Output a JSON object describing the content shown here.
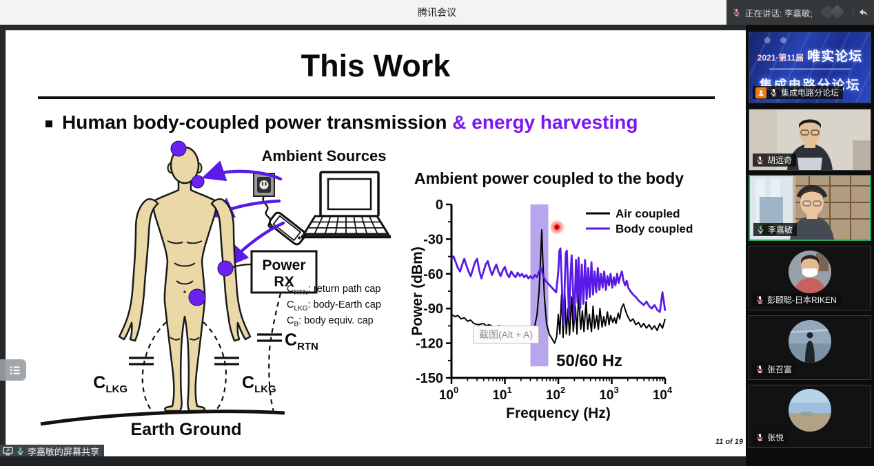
{
  "title_bar": {
    "app_title": "腾讯会议",
    "speaking_label": "正在讲话: 李嘉敏;"
  },
  "share_label": {
    "text": "李嘉敏的屏幕共享"
  },
  "sidebar": {
    "participants": [
      {
        "name": "集成电路分论坛",
        "muted": true,
        "type": "banner",
        "banner_line1": "2021·第11届",
        "banner_line2": "唯实论坛",
        "banner_line3": "集成电路分论坛"
      },
      {
        "name": "胡远奇",
        "muted": true,
        "type": "video"
      },
      {
        "name": "李嘉敏",
        "muted": false,
        "speaking": true,
        "type": "video"
      },
      {
        "name": "彭颐聪-日本RIKEN",
        "muted": true,
        "type": "avatar"
      },
      {
        "name": "张召富",
        "muted": true,
        "type": "avatar"
      },
      {
        "name": "张悦",
        "muted": true,
        "type": "avatar"
      }
    ]
  },
  "slide": {
    "title": "This Work",
    "bullet": {
      "black": "Human body-coupled power transmission ",
      "purple": "& energy harvesting"
    },
    "page_number": "11 of 19",
    "diagram": {
      "ambient_sources": "Ambient Sources",
      "power_rx_line1": "Power",
      "power_rx_line2": "RX",
      "earth_ground": "Earth Ground",
      "cap_labels": {
        "lkg_left": {
          "main": "C",
          "sub": "LKG"
        },
        "lkg_right": {
          "main": "C",
          "sub": "LKG"
        },
        "rtn": {
          "main": "C",
          "sub": "RTN"
        }
      },
      "cap_legend": [
        {
          "main": "C",
          "sub": "RTN",
          "desc": ": return path cap"
        },
        {
          "main": "C",
          "sub": "LKG",
          "desc": ": body-Earth cap"
        },
        {
          "main": "C",
          "sub": "B",
          "desc": ": body equiv. cap"
        }
      ]
    }
  },
  "overlays": {
    "screenshot_tooltip": "截图(Alt + A)"
  },
  "colors": {
    "accent_purple": "#7a16f0",
    "curve_purple": "#5a1ae6",
    "band_purple": "#a88fe6",
    "active_green": "#1fa85e",
    "muted_red": "#e23b3b"
  },
  "chart_data": {
    "type": "line",
    "title": "Ambient power coupled to the body",
    "xlabel": "Frequency (Hz)",
    "ylabel": "Power (dBm)",
    "x_scale": "log",
    "xlim_log10": [
      0,
      4
    ],
    "ylim": [
      -150,
      0
    ],
    "yticks": [
      0,
      -30,
      -60,
      -90,
      -120,
      -150
    ],
    "xtick_exponents": [
      0,
      1,
      2,
      3,
      4
    ],
    "annotation": "50/60 Hz",
    "highlight_band_hz": [
      30,
      65
    ],
    "legend_position": "top-right",
    "series": [
      {
        "name": "Air coupled",
        "color": "#000000",
        "width": 2,
        "points_log10hz_dbm": [
          [
            0,
            -95
          ],
          [
            0.06,
            -97
          ],
          [
            0.12,
            -96
          ],
          [
            0.18,
            -99
          ],
          [
            0.24,
            -98
          ],
          [
            0.3,
            -101
          ],
          [
            0.36,
            -100
          ],
          [
            0.42,
            -103
          ],
          [
            0.5,
            -104
          ],
          [
            0.6,
            -103
          ],
          [
            0.65,
            -105
          ],
          [
            0.7,
            -104
          ],
          [
            0.8,
            -106
          ],
          [
            0.9,
            -105
          ],
          [
            1.0,
            -107
          ],
          [
            1.1,
            -106
          ],
          [
            1.2,
            -108
          ],
          [
            1.3,
            -107
          ],
          [
            1.35,
            -109
          ],
          [
            1.45,
            -108
          ],
          [
            1.5,
            -110
          ],
          [
            1.55,
            -107
          ],
          [
            1.6,
            -96
          ],
          [
            1.64,
            -75
          ],
          [
            1.67,
            -45
          ],
          [
            1.69,
            -22
          ],
          [
            1.71,
            -48
          ],
          [
            1.74,
            -80
          ],
          [
            1.78,
            -103
          ],
          [
            1.83,
            -112
          ],
          [
            1.88,
            -116
          ],
          [
            1.93,
            -120
          ],
          [
            1.97,
            -114
          ],
          [
            2.0,
            -95
          ],
          [
            2.03,
            -112
          ],
          [
            2.06,
            -78
          ],
          [
            2.09,
            -115
          ],
          [
            2.12,
            -74
          ],
          [
            2.15,
            -112
          ],
          [
            2.18,
            -90
          ],
          [
            2.21,
            -113
          ],
          [
            2.25,
            -80
          ],
          [
            2.28,
            -110
          ],
          [
            2.32,
            -88
          ],
          [
            2.35,
            -112
          ],
          [
            2.38,
            -78
          ],
          [
            2.42,
            -108
          ],
          [
            2.45,
            -92
          ],
          [
            2.48,
            -110
          ],
          [
            2.52,
            -84
          ],
          [
            2.55,
            -108
          ],
          [
            2.58,
            -95
          ],
          [
            2.62,
            -110
          ],
          [
            2.65,
            -88
          ],
          [
            2.68,
            -107
          ],
          [
            2.72,
            -96
          ],
          [
            2.75,
            -108
          ],
          [
            2.78,
            -90
          ],
          [
            2.82,
            -106
          ],
          [
            2.85,
            -97
          ],
          [
            2.88,
            -105
          ],
          [
            2.92,
            -93
          ],
          [
            2.95,
            -104
          ],
          [
            2.98,
            -96
          ],
          [
            3.02,
            -102
          ],
          [
            3.05,
            -98
          ],
          [
            3.08,
            -103
          ],
          [
            3.12,
            -94
          ],
          [
            3.15,
            -99
          ],
          [
            3.18,
            -90
          ],
          [
            3.22,
            -86
          ],
          [
            3.26,
            -92
          ],
          [
            3.3,
            -97
          ],
          [
            3.35,
            -101
          ],
          [
            3.4,
            -99
          ],
          [
            3.45,
            -104
          ],
          [
            3.5,
            -102
          ],
          [
            3.55,
            -106
          ],
          [
            3.6,
            -103
          ],
          [
            3.65,
            -107
          ],
          [
            3.7,
            -104
          ],
          [
            3.75,
            -108
          ],
          [
            3.8,
            -105
          ],
          [
            3.85,
            -109
          ],
          [
            3.9,
            -103
          ],
          [
            3.95,
            -107
          ],
          [
            4.0,
            -99
          ]
        ]
      },
      {
        "name": "Body coupled",
        "color": "#5a1ae6",
        "width": 2.8,
        "points_log10hz_dbm": [
          [
            0,
            -48
          ],
          [
            0.04,
            -45
          ],
          [
            0.08,
            -50
          ],
          [
            0.12,
            -55
          ],
          [
            0.16,
            -58
          ],
          [
            0.2,
            -52
          ],
          [
            0.24,
            -47
          ],
          [
            0.28,
            -53
          ],
          [
            0.32,
            -58
          ],
          [
            0.36,
            -62
          ],
          [
            0.4,
            -56
          ],
          [
            0.44,
            -50
          ],
          [
            0.48,
            -47
          ],
          [
            0.52,
            -57
          ],
          [
            0.56,
            -64
          ],
          [
            0.6,
            -58
          ],
          [
            0.64,
            -52
          ],
          [
            0.68,
            -49
          ],
          [
            0.72,
            -56
          ],
          [
            0.76,
            -61
          ],
          [
            0.8,
            -56
          ],
          [
            0.84,
            -52
          ],
          [
            0.88,
            -58
          ],
          [
            0.92,
            -62
          ],
          [
            0.96,
            -57
          ],
          [
            1.0,
            -54
          ],
          [
            1.04,
            -60
          ],
          [
            1.08,
            -63
          ],
          [
            1.12,
            -58
          ],
          [
            1.16,
            -61
          ],
          [
            1.2,
            -63
          ],
          [
            1.24,
            -59
          ],
          [
            1.28,
            -62
          ],
          [
            1.32,
            -60
          ],
          [
            1.36,
            -63
          ],
          [
            1.4,
            -61
          ],
          [
            1.44,
            -64
          ],
          [
            1.48,
            -62
          ],
          [
            1.52,
            -64
          ],
          [
            1.56,
            -61
          ],
          [
            1.6,
            -63
          ],
          [
            1.64,
            -58
          ],
          [
            1.67,
            -55
          ],
          [
            1.69,
            -57
          ],
          [
            1.72,
            -62
          ],
          [
            1.76,
            -66
          ],
          [
            1.8,
            -68
          ],
          [
            1.84,
            -70
          ],
          [
            1.88,
            -72
          ],
          [
            1.92,
            -74
          ],
          [
            1.96,
            -76
          ],
          [
            2.0,
            -58
          ],
          [
            2.02,
            -40
          ],
          [
            2.04,
            -38
          ],
          [
            2.06,
            -62
          ],
          [
            2.08,
            -88
          ],
          [
            2.1,
            -104
          ],
          [
            2.12,
            -70
          ],
          [
            2.14,
            -42
          ],
          [
            2.16,
            -40
          ],
          [
            2.18,
            -68
          ],
          [
            2.2,
            -98
          ],
          [
            2.23,
            -60
          ],
          [
            2.25,
            -44
          ],
          [
            2.28,
            -80
          ],
          [
            2.3,
            -100
          ],
          [
            2.33,
            -48
          ],
          [
            2.36,
            -85
          ],
          [
            2.38,
            -46
          ],
          [
            2.41,
            -90
          ],
          [
            2.44,
            -52
          ],
          [
            2.47,
            -86
          ],
          [
            2.5,
            -48
          ],
          [
            2.53,
            -82
          ],
          [
            2.56,
            -55
          ],
          [
            2.59,
            -80
          ],
          [
            2.62,
            -50
          ],
          [
            2.65,
            -78
          ],
          [
            2.68,
            -58
          ],
          [
            2.71,
            -76
          ],
          [
            2.74,
            -55
          ],
          [
            2.77,
            -74
          ],
          [
            2.8,
            -60
          ],
          [
            2.83,
            -72
          ],
          [
            2.86,
            -58
          ],
          [
            2.89,
            -74
          ],
          [
            2.92,
            -62
          ],
          [
            2.95,
            -70
          ],
          [
            2.98,
            -60
          ],
          [
            3.01,
            -72
          ],
          [
            3.04,
            -63
          ],
          [
            3.07,
            -70
          ],
          [
            3.1,
            -60
          ],
          [
            3.13,
            -68
          ],
          [
            3.16,
            -62
          ],
          [
            3.19,
            -58
          ],
          [
            3.22,
            -66
          ],
          [
            3.25,
            -70
          ],
          [
            3.28,
            -66
          ],
          [
            3.31,
            -72
          ],
          [
            3.35,
            -75
          ],
          [
            3.4,
            -78
          ],
          [
            3.45,
            -80
          ],
          [
            3.5,
            -83
          ],
          [
            3.55,
            -85
          ],
          [
            3.6,
            -87
          ],
          [
            3.65,
            -84
          ],
          [
            3.7,
            -88
          ],
          [
            3.75,
            -90
          ],
          [
            3.8,
            -87
          ],
          [
            3.85,
            -91
          ],
          [
            3.9,
            -93
          ],
          [
            3.95,
            -76
          ],
          [
            4.0,
            -92
          ]
        ]
      }
    ]
  }
}
